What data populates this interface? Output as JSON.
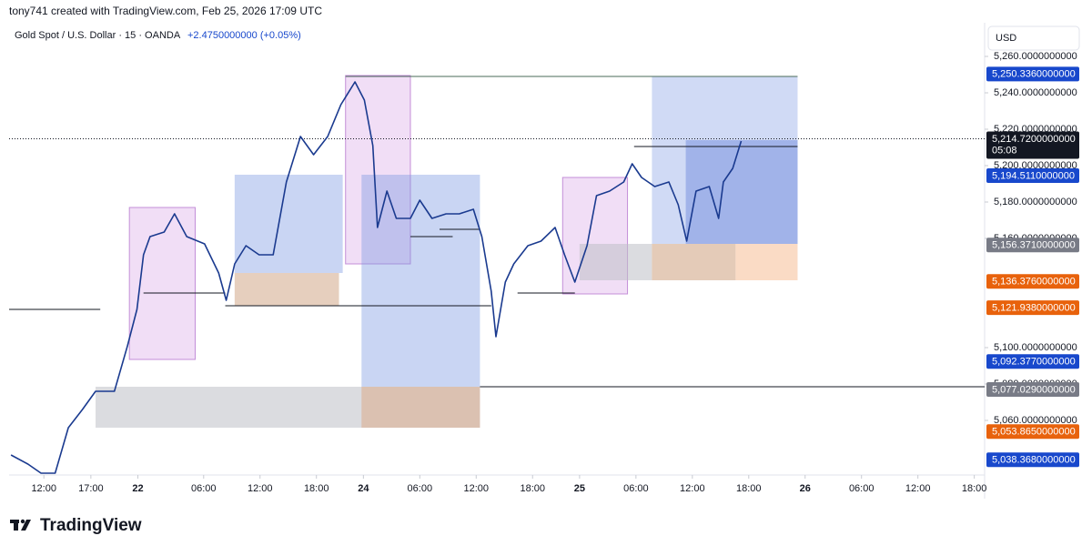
{
  "header": "tony741 created with TradingView.com, Feb 25, 2026 17:09 UTC",
  "brand": "TradingView",
  "chart_data": {
    "type": "line",
    "title": "Gold Spot / U.S. Dollar · 15 · OANDA",
    "change": "+2.4750000000 (+0.05%)",
    "currency": "USD",
    "grid": false,
    "xlim": [
      -3.7,
      100.1
    ],
    "ylim": [
      5030,
      5278.5
    ],
    "xticks": [
      {
        "value": 0,
        "label": "12:00"
      },
      {
        "value": 5,
        "label": "17:00"
      },
      {
        "value": 10,
        "label": "22"
      },
      {
        "value": 17,
        "label": "06:00"
      },
      {
        "value": 23,
        "label": "12:00"
      },
      {
        "value": 29,
        "label": "18:00"
      },
      {
        "value": 34,
        "label": "24"
      },
      {
        "value": 40,
        "label": "06:00"
      },
      {
        "value": 46,
        "label": "12:00"
      },
      {
        "value": 52,
        "label": "18:00"
      },
      {
        "value": 57,
        "label": "25"
      },
      {
        "value": 63,
        "label": "06:00"
      },
      {
        "value": 69,
        "label": "12:00"
      },
      {
        "value": 75,
        "label": "18:00"
      },
      {
        "value": 81,
        "label": "26"
      },
      {
        "value": 87,
        "label": "06:00"
      },
      {
        "value": 93,
        "label": "12:00"
      },
      {
        "value": 99,
        "label": "18:00"
      }
    ],
    "yticks": [
      {
        "value": 5260,
        "label": "5,260.0000000000"
      },
      {
        "value": 5240,
        "label": "5,240.0000000000"
      },
      {
        "value": 5220,
        "label": "5,220.0000000000"
      },
      {
        "value": 5200,
        "label": "5,200.0000000000"
      },
      {
        "value": 5180,
        "label": "5,180.0000000000"
      },
      {
        "value": 5160,
        "label": "5,160.0000000000"
      },
      {
        "value": 5100,
        "label": "5,100.0000000000"
      },
      {
        "value": 5080,
        "label": "5,080.0000000000"
      },
      {
        "value": 5060,
        "label": "5,060.0000000000"
      }
    ],
    "series": [
      {
        "color": "#1a3a8f",
        "x": [
          -3.5,
          -1.7,
          -0.3,
          1.2,
          2.6,
          4.1,
          5.5,
          7.5,
          8.9,
          9.9,
          10.6,
          11.3,
          12.8,
          13.9,
          15.2,
          17.1,
          18.6,
          19.4,
          20.3,
          21.5,
          22.9,
          24.4,
          25.8,
          27.3,
          28.7,
          30.2,
          31.6,
          33.1,
          34.1,
          35.0,
          35.5,
          36.5,
          37.5,
          39.0,
          40.0,
          41.3,
          42.8,
          44.2,
          45.7,
          46.6,
          47.6,
          48.1,
          49.1,
          50.0,
          51.5,
          52.9,
          54.4,
          55.4,
          56.5,
          57.8,
          58.8,
          60.2,
          61.7,
          62.6,
          63.6,
          65.0,
          66.5,
          67.5,
          68.4,
          69.4,
          70.8,
          71.8,
          72.3,
          73.3,
          74.2
        ],
        "values": [
          5041,
          5036,
          5031,
          5031,
          5056,
          5066,
          5076,
          5076,
          5101,
          5121,
          5151,
          5161,
          5163.5,
          5173.5,
          5161,
          5157,
          5141,
          5126,
          5146,
          5156,
          5151,
          5151,
          5191,
          5216,
          5206,
          5216,
          5233.5,
          5246,
          5236,
          5211,
          5166,
          5186,
          5171,
          5171,
          5181,
          5171,
          5173.5,
          5173.5,
          5176,
          5161,
          5131,
          5106,
          5136,
          5146,
          5156,
          5158.5,
          5166,
          5151,
          5136,
          5156,
          5183.5,
          5186,
          5191,
          5201,
          5193.5,
          5188.5,
          5191,
          5178.5,
          5158.5,
          5186,
          5188.5,
          5171,
          5191,
          5198.5,
          5213.5
        ]
      }
    ],
    "zones": [
      {
        "x0": 5.5,
        "x1": 46.4,
        "low": 5056,
        "high": 5078.5,
        "color": "rgba(190,192,198,0.55)"
      },
      {
        "x0": 9.1,
        "x1": 16.1,
        "low": 5093.5,
        "high": 5177,
        "color": "rgba(232,200,240,0.6)",
        "border": "#c48fd8"
      },
      {
        "x0": 20.3,
        "x1": 31.8,
        "low": 5141,
        "high": 5195,
        "color": "rgba(120,150,225,0.4)"
      },
      {
        "x0": 20.3,
        "x1": 31.4,
        "low": 5123,
        "high": 5141,
        "color": "rgba(205,160,125,0.5)"
      },
      {
        "x0": 32.1,
        "x1": 39.0,
        "low": 5146,
        "high": 5249.5,
        "color": "rgba(232,200,240,0.6)",
        "border": "#c48fd8"
      },
      {
        "x0": 33.8,
        "x1": 46.4,
        "low": 5078.5,
        "high": 5195,
        "color": "rgba(120,150,225,0.4)"
      },
      {
        "x0": 33.8,
        "x1": 46.4,
        "low": 5056,
        "high": 5078.5,
        "color": "rgba(220,160,120,0.45)"
      },
      {
        "x0": 55.2,
        "x1": 62.1,
        "low": 5129.5,
        "high": 5193.5,
        "color": "rgba(232,200,240,0.6)",
        "border": "#c48fd8"
      },
      {
        "x0": 64.7,
        "x1": 80.2,
        "low": 5157,
        "high": 5249,
        "color": "rgba(120,150,225,0.35)"
      },
      {
        "x0": 68.3,
        "x1": 80.2,
        "low": 5157,
        "high": 5214,
        "color": "rgba(90,120,215,0.4)"
      },
      {
        "x0": 57.0,
        "x1": 64.7,
        "low": 5137,
        "high": 5157,
        "color": "rgba(190,192,198,0.55)"
      },
      {
        "x0": 64.7,
        "x1": 73.6,
        "low": 5137,
        "high": 5157,
        "color": "rgba(205,160,125,0.55)"
      },
      {
        "x0": 73.6,
        "x1": 80.2,
        "low": 5137,
        "high": 5157,
        "color": "rgba(245,190,150,0.55)"
      }
    ],
    "levels": [
      {
        "x0": -3.7,
        "x1": 6.0,
        "price": 5121,
        "color": "#131722"
      },
      {
        "x0": 19.3,
        "x1": 47.6,
        "price": 5123,
        "color": "#131722"
      },
      {
        "x0": 46.4,
        "x1": 100.1,
        "price": 5078.5,
        "color": "#131722"
      },
      {
        "x0": 32.1,
        "x1": 80.2,
        "price": 5249,
        "color": "#4a6b5a"
      },
      {
        "x0": 62.8,
        "x1": 80.2,
        "price": 5210.5,
        "color": "#131722"
      },
      {
        "x0": 10.6,
        "x1": 19.3,
        "price": 5130,
        "color": "#131722"
      },
      {
        "x0": 50.4,
        "x1": 56.5,
        "price": 5130,
        "color": "#131722"
      },
      {
        "x0": 39.0,
        "x1": 43.5,
        "price": 5161,
        "color": "#131722"
      },
      {
        "x0": 42.1,
        "x1": 46.4,
        "price": 5165,
        "color": "#131722"
      }
    ],
    "current_price": {
      "value": 5214.72,
      "label": "5,214.7200000000",
      "countdown": "05:08"
    },
    "price_labels": [
      {
        "value": 5250.336,
        "label": "5,250.3360000000",
        "color": "#1848cc"
      },
      {
        "value": 5194.511,
        "label": "5,194.5110000000",
        "color": "#1848cc"
      },
      {
        "value": 5156.371,
        "label": "5,156.3710000000",
        "color": "#787b86"
      },
      {
        "value": 5136.376,
        "label": "5,136.3760000000",
        "color": "#e8620c"
      },
      {
        "value": 5121.938,
        "label": "5,121.9380000000",
        "color": "#e8620c"
      },
      {
        "value": 5092.377,
        "label": "5,092.3770000000",
        "color": "#1848cc"
      },
      {
        "value": 5077.029,
        "label": "5,077.0290000000",
        "color": "#787b86"
      },
      {
        "value": 5053.865,
        "label": "5,053.8650000000",
        "color": "#e8620c"
      },
      {
        "value": 5038.368,
        "label": "5,038.3680000000",
        "color": "#1848cc"
      }
    ]
  }
}
